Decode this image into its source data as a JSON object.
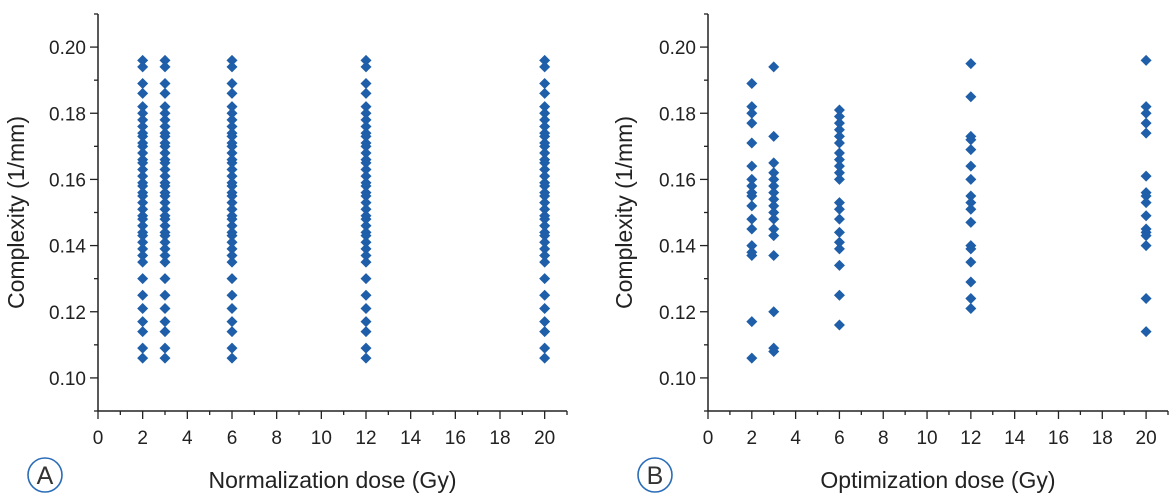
{
  "colors": {
    "marker": "#1f5ea8",
    "axis": "#222222",
    "panel_label": "#2a6cb8"
  },
  "chart_data": [
    {
      "type": "scatter",
      "panel_label": "A",
      "xlabel": "Normalization dose (Gy)",
      "ylabel": "Complexity (1/mm)",
      "xlim": [
        0,
        21
      ],
      "ylim": [
        0.09,
        0.21
      ],
      "xticks": [
        "0",
        "2",
        "4",
        "6",
        "8",
        "10",
        "12",
        "14",
        "16",
        "18",
        "20"
      ],
      "yticks": [
        "0.10",
        "0.12",
        "0.14",
        "0.16",
        "0.18",
        "0.20"
      ],
      "grid": false,
      "series": [
        {
          "x": 2,
          "y": [
            0.196,
            0.194,
            0.189,
            0.186,
            0.182,
            0.18,
            0.178,
            0.176,
            0.174,
            0.173,
            0.171,
            0.17,
            0.168,
            0.166,
            0.165,
            0.163,
            0.161,
            0.159,
            0.158,
            0.156,
            0.155,
            0.153,
            0.151,
            0.149,
            0.148,
            0.146,
            0.144,
            0.143,
            0.141,
            0.139,
            0.137,
            0.135,
            0.13,
            0.125,
            0.121,
            0.117,
            0.114,
            0.109,
            0.106
          ]
        },
        {
          "x": 3,
          "y": [
            0.196,
            0.194,
            0.189,
            0.186,
            0.182,
            0.18,
            0.178,
            0.176,
            0.174,
            0.173,
            0.171,
            0.17,
            0.168,
            0.166,
            0.165,
            0.163,
            0.161,
            0.159,
            0.158,
            0.156,
            0.155,
            0.153,
            0.151,
            0.149,
            0.148,
            0.146,
            0.144,
            0.143,
            0.141,
            0.139,
            0.137,
            0.135,
            0.13,
            0.125,
            0.121,
            0.117,
            0.114,
            0.109,
            0.106
          ]
        },
        {
          "x": 6,
          "y": [
            0.196,
            0.194,
            0.189,
            0.186,
            0.182,
            0.18,
            0.178,
            0.176,
            0.174,
            0.173,
            0.171,
            0.17,
            0.168,
            0.166,
            0.165,
            0.163,
            0.161,
            0.159,
            0.158,
            0.156,
            0.155,
            0.153,
            0.151,
            0.149,
            0.148,
            0.146,
            0.144,
            0.143,
            0.141,
            0.139,
            0.137,
            0.135,
            0.13,
            0.125,
            0.121,
            0.117,
            0.114,
            0.109,
            0.106
          ]
        },
        {
          "x": 12,
          "y": [
            0.196,
            0.194,
            0.189,
            0.186,
            0.182,
            0.18,
            0.178,
            0.176,
            0.174,
            0.173,
            0.171,
            0.17,
            0.168,
            0.166,
            0.165,
            0.163,
            0.161,
            0.159,
            0.158,
            0.156,
            0.155,
            0.153,
            0.151,
            0.149,
            0.148,
            0.146,
            0.144,
            0.143,
            0.141,
            0.139,
            0.137,
            0.135,
            0.13,
            0.125,
            0.121,
            0.117,
            0.114,
            0.109,
            0.106
          ]
        },
        {
          "x": 20,
          "y": [
            0.196,
            0.194,
            0.189,
            0.186,
            0.182,
            0.18,
            0.178,
            0.176,
            0.174,
            0.173,
            0.171,
            0.17,
            0.168,
            0.166,
            0.165,
            0.163,
            0.161,
            0.159,
            0.158,
            0.156,
            0.155,
            0.153,
            0.151,
            0.149,
            0.148,
            0.146,
            0.144,
            0.143,
            0.141,
            0.139,
            0.137,
            0.135,
            0.13,
            0.125,
            0.121,
            0.117,
            0.114,
            0.109,
            0.106
          ]
        }
      ]
    },
    {
      "type": "scatter",
      "panel_label": "B",
      "xlabel": "Optimization dose (Gy)",
      "ylabel": "Complexity (1/mm)",
      "xlim": [
        0,
        21
      ],
      "ylim": [
        0.09,
        0.21
      ],
      "xticks": [
        "0",
        "2",
        "4",
        "6",
        "8",
        "10",
        "12",
        "14",
        "16",
        "18",
        "20"
      ],
      "yticks": [
        "0.10",
        "0.12",
        "0.14",
        "0.16",
        "0.18",
        "0.20"
      ],
      "grid": false,
      "series": [
        {
          "x": 2,
          "y": [
            0.189,
            0.182,
            0.18,
            0.177,
            0.171,
            0.164,
            0.16,
            0.158,
            0.156,
            0.155,
            0.152,
            0.148,
            0.145,
            0.14,
            0.138,
            0.137,
            0.117,
            0.106
          ]
        },
        {
          "x": 3,
          "y": [
            0.194,
            0.173,
            0.165,
            0.162,
            0.16,
            0.158,
            0.156,
            0.154,
            0.152,
            0.15,
            0.148,
            0.145,
            0.143,
            0.137,
            0.12,
            0.109,
            0.108
          ]
        },
        {
          "x": 6,
          "y": [
            0.181,
            0.179,
            0.177,
            0.175,
            0.173,
            0.171,
            0.168,
            0.166,
            0.164,
            0.162,
            0.16,
            0.153,
            0.151,
            0.148,
            0.144,
            0.141,
            0.139,
            0.134,
            0.125,
            0.116
          ]
        },
        {
          "x": 12,
          "y": [
            0.195,
            0.185,
            0.173,
            0.172,
            0.169,
            0.164,
            0.16,
            0.155,
            0.153,
            0.151,
            0.147,
            0.14,
            0.139,
            0.135,
            0.129,
            0.124,
            0.121
          ]
        },
        {
          "x": 20,
          "y": [
            0.196,
            0.182,
            0.18,
            0.177,
            0.174,
            0.161,
            0.156,
            0.155,
            0.153,
            0.149,
            0.145,
            0.144,
            0.143,
            0.14,
            0.124,
            0.114
          ]
        }
      ]
    }
  ]
}
